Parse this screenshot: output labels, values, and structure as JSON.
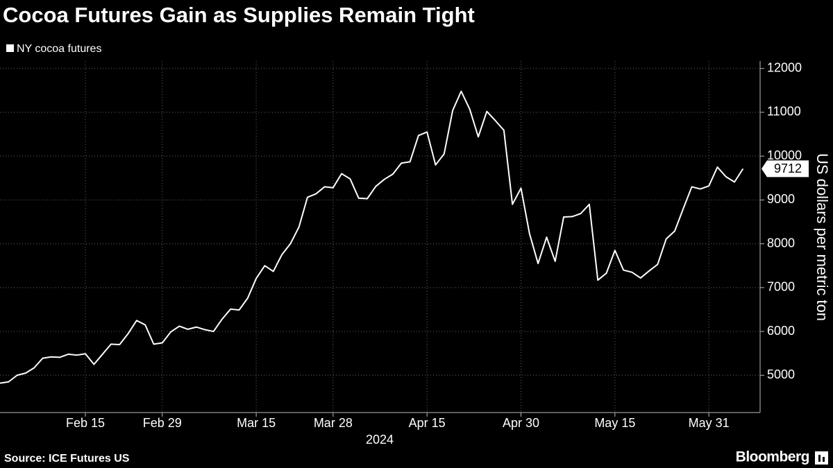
{
  "chart_data": {
    "type": "line",
    "title": "Cocoa Futures Gain as Supplies Remain Tight",
    "ylabel": "US dollars per metric ton",
    "xlabel": "2024",
    "source": "Source: ICE Futures US",
    "brand": "Bloomberg",
    "categories": [
      null,
      null,
      null,
      null,
      null,
      null,
      null,
      null,
      null,
      null,
      "Feb 15",
      null,
      null,
      null,
      null,
      null,
      null,
      null,
      null,
      "Feb 29",
      null,
      null,
      null,
      null,
      null,
      null,
      null,
      null,
      null,
      null,
      "Mar 15",
      null,
      null,
      null,
      null,
      null,
      null,
      null,
      null,
      "Mar 28",
      null,
      null,
      null,
      null,
      null,
      null,
      null,
      null,
      null,
      null,
      "Apr 15",
      null,
      null,
      null,
      null,
      null,
      null,
      null,
      null,
      null,
      null,
      "Apr 30",
      null,
      null,
      null,
      null,
      null,
      null,
      null,
      null,
      null,
      null,
      "May 15",
      null,
      null,
      null,
      null,
      null,
      null,
      null,
      null,
      null,
      null,
      "May 31",
      null,
      null,
      null,
      null
    ],
    "series": [
      {
        "name": "NY cocoa futures",
        "color": "#ffffff",
        "values": [
          4820,
          4850,
          5000,
          5050,
          5170,
          5390,
          5420,
          5410,
          5480,
          5460,
          5490,
          5250,
          5480,
          5710,
          5700,
          5950,
          6250,
          6150,
          5710,
          5740,
          5990,
          6120,
          6050,
          6100,
          6040,
          6000,
          6280,
          6510,
          6490,
          6760,
          7210,
          7500,
          7370,
          7750,
          8000,
          8380,
          9060,
          9140,
          9300,
          9280,
          9600,
          9480,
          9040,
          9030,
          9310,
          9470,
          9590,
          9840,
          9870,
          10470,
          10550,
          9800,
          10050,
          11040,
          11480,
          11070,
          10440,
          11020,
          10810,
          10590,
          8900,
          9270,
          8230,
          7550,
          8150,
          7600,
          8610,
          8620,
          8690,
          8900,
          7170,
          7330,
          7850,
          7400,
          7350,
          7220,
          7380,
          7530,
          8110,
          8290,
          8800,
          9300,
          9250,
          9320,
          9750,
          9530,
          9410,
          9712
        ]
      }
    ],
    "ylim": [
      4150,
      12170
    ],
    "yticks": [
      5000,
      6000,
      7000,
      8000,
      9000,
      10000,
      11000,
      12000
    ],
    "grid": true
  }
}
